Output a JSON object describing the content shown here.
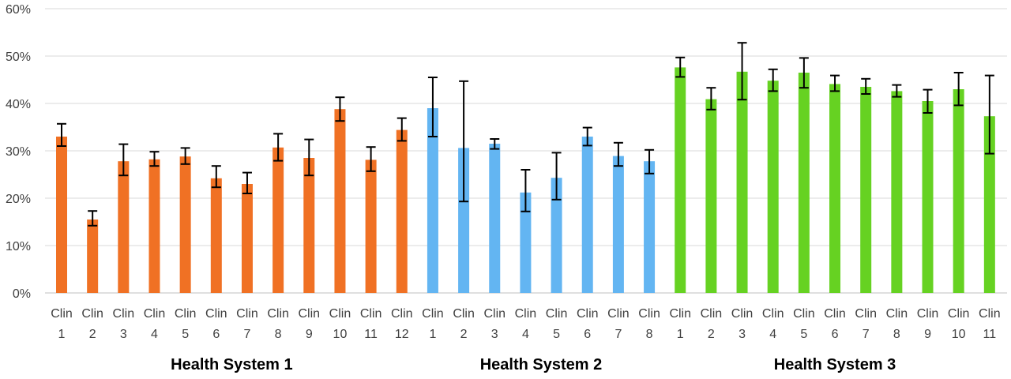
{
  "chart_data": {
    "type": "bar",
    "title": "",
    "xlabel": "",
    "ylabel": "",
    "ylim": [
      0,
      60
    ],
    "y_ticks": [
      "0%",
      "10%",
      "20%",
      "30%",
      "40%",
      "50%",
      "60%"
    ],
    "grid": "horizontal",
    "legend": "none",
    "groups": [
      {
        "name": "Health System 1",
        "color": "#F07124",
        "categories": [
          "Clin 1",
          "Clin 2",
          "Clin 3",
          "Clin 4",
          "Clin 5",
          "Clin 6",
          "Clin 7",
          "Clin 8",
          "Clin 9",
          "Clin 10",
          "Clin 11",
          "Clin 12"
        ],
        "values": [
          33,
          15.5,
          27.8,
          28.2,
          28.8,
          24.2,
          23,
          30.7,
          28.5,
          38.8,
          28.1,
          34.4
        ],
        "error_low": [
          31,
          14.2,
          24.8,
          26.8,
          27.2,
          22.3,
          21,
          27.9,
          24.8,
          36.3,
          25.7,
          32.1
        ],
        "error_high": [
          35.7,
          17.3,
          31.4,
          29.8,
          30.6,
          26.8,
          25.4,
          33.6,
          32.4,
          41.3,
          30.8,
          36.9
        ]
      },
      {
        "name": "Health System 2",
        "color": "#63B5F2",
        "categories": [
          "Clin 1",
          "Clin 2",
          "Clin 3",
          "Clin 4",
          "Clin 5",
          "Clin 6",
          "Clin 7",
          "Clin 8"
        ],
        "values": [
          39,
          30.6,
          31.5,
          21.2,
          24.3,
          33,
          28.9,
          27.8
        ],
        "error_low": [
          33,
          19.3,
          30.4,
          17.2,
          19.7,
          31.1,
          26.8,
          25.2
        ],
        "error_high": [
          45.5,
          44.7,
          32.5,
          26,
          29.6,
          34.9,
          31.7,
          30.2
        ]
      },
      {
        "name": "Health System 3",
        "color": "#66D222",
        "categories": [
          "Clin 1",
          "Clin 2",
          "Clin 3",
          "Clin 4",
          "Clin 5",
          "Clin 6",
          "Clin 7",
          "Clin 8",
          "Clin 9",
          "Clin 10",
          "Clin 11"
        ],
        "values": [
          47.6,
          40.9,
          46.7,
          44.8,
          46.5,
          44.1,
          43.5,
          42.6,
          40.5,
          43,
          37.3
        ],
        "error_low": [
          45.6,
          38.7,
          40.8,
          42.6,
          43.3,
          42.6,
          42,
          41.4,
          38,
          39.6,
          29.4
        ],
        "error_high": [
          49.7,
          43.3,
          52.8,
          47.2,
          49.6,
          45.9,
          45.2,
          43.9,
          42.9,
          46.5,
          45.9
        ]
      }
    ]
  }
}
